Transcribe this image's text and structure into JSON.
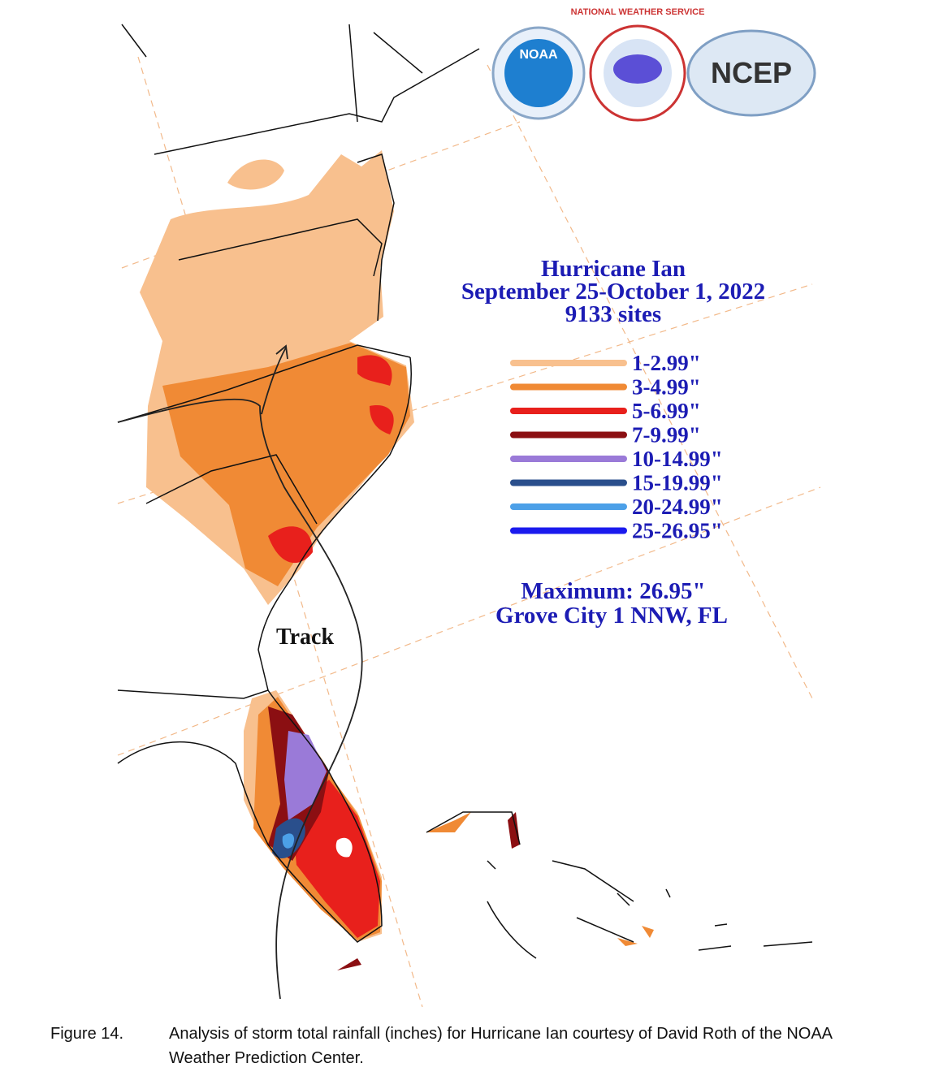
{
  "title": [
    "Hurricane Ian",
    "September 25-October 1, 2022",
    "9133 sites"
  ],
  "legend": [
    {
      "label": "1-2.99\"",
      "color": "#f8c08e"
    },
    {
      "label": "3-4.99\"",
      "color": "#f08a35"
    },
    {
      "label": "5-6.99\"",
      "color": "#e8201c"
    },
    {
      "label": "7-9.99\"",
      "color": "#8b0f12"
    },
    {
      "label": "10-14.99\"",
      "color": "#9a7ad8"
    },
    {
      "label": "15-19.99\"",
      "color": "#2a4f8c"
    },
    {
      "label": "20-24.99\"",
      "color": "#4ca0e8"
    },
    {
      "label": "25-26.95\"",
      "color": "#1a1aee"
    }
  ],
  "maximum": [
    "Maximum:  26.95\"",
    "Grove City 1 NNW, FL"
  ],
  "track_label": "Track",
  "logos": [
    "NOAA",
    "NATIONAL WEATHER SERVICE",
    "NCEP"
  ],
  "caption": {
    "figure": "Figure 14.",
    "text": "Analysis of storm total rainfall (inches) for Hurricane Ian courtesy of David Roth of the NOAA Weather Prediction Center."
  }
}
